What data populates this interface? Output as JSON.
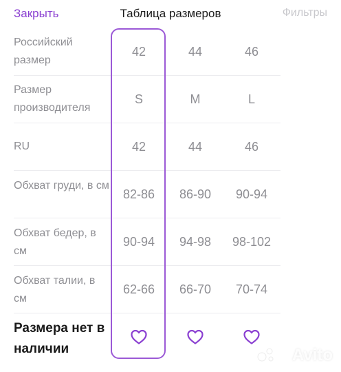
{
  "header": {
    "close_label": "Закрыть",
    "title": "Таблица размеров",
    "filters_label": "Фильтры"
  },
  "rows": [
    {
      "label": "Российский размер",
      "values": [
        "42",
        "44",
        "46"
      ]
    },
    {
      "label": "Размер производителя",
      "values": [
        "S",
        "M",
        "L"
      ]
    },
    {
      "label": "RU",
      "values": [
        "42",
        "44",
        "46"
      ]
    },
    {
      "label": "Обхват груди, в см",
      "values": [
        "82-86",
        "86-90",
        "90-94"
      ]
    },
    {
      "label": "Обхват бедер, в см",
      "values": [
        "90-94",
        "94-98",
        "98-102"
      ]
    },
    {
      "label": "Обхват талии, в см",
      "values": [
        "62-66",
        "66-70",
        "70-74"
      ]
    }
  ],
  "availability": {
    "label": "Размера нет в наличии",
    "icon": "heart-icon"
  },
  "colors": {
    "accent": "#8a3fd1",
    "highlight_border": "#9b59d6",
    "muted_text": "#8e8e93"
  },
  "watermark": "Avito"
}
